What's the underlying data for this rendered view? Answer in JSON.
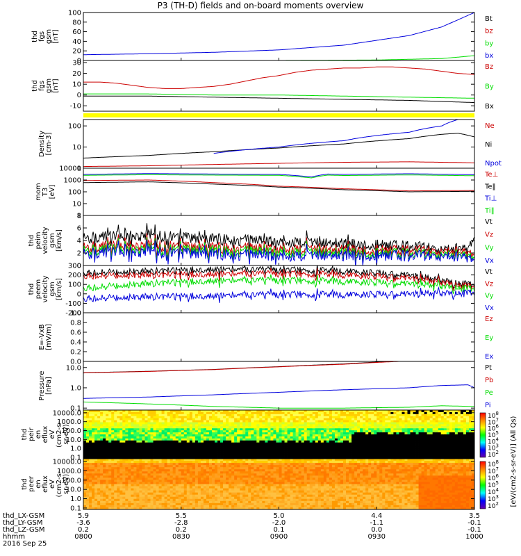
{
  "title": "P3 (TH-D) fields and on-board moments overview",
  "date": "2016 Sep 25",
  "colors": {
    "black": "#000000",
    "red": "#cc0000",
    "green": "#00dd00",
    "blue": "#0000dd",
    "yellow": "#ffff00"
  },
  "chart_data": [
    {
      "type": "line",
      "id": "fgs-gsm-mag",
      "ylabel": [
        "thd",
        "fgs",
        "gsm",
        "[nT]"
      ],
      "ylim": [
        0,
        100
      ],
      "yticks": [
        "100",
        "80",
        "60",
        "40",
        "20",
        "0"
      ],
      "yticks_values": [
        100,
        80,
        60,
        40,
        20,
        0
      ],
      "legend": [
        {
          "name": "Bt",
          "color": "#000000"
        },
        {
          "name": "bz",
          "color": "#cc0000"
        },
        {
          "name": "by",
          "color": "#00dd00"
        },
        {
          "name": "bx",
          "color": "#0000dd"
        }
      ],
      "series": [
        {
          "name": "bx",
          "color": "#0000dd",
          "x": [
            0,
            20,
            40,
            60,
            80,
            100,
            110,
            120
          ],
          "y": [
            12,
            14,
            17,
            22,
            32,
            52,
            70,
            100
          ]
        },
        {
          "name": "by",
          "color": "#00dd00",
          "x": [
            0,
            60,
            90,
            110,
            120
          ],
          "y": [
            0,
            0,
            1,
            4,
            10
          ]
        }
      ]
    },
    {
      "type": "line",
      "id": "fgs-gsm-comp",
      "ylabel": [
        "thd",
        "fgs",
        "gsm",
        "[nT]"
      ],
      "ylim": [
        -15,
        32
      ],
      "yticks": [
        "30",
        "20",
        "10",
        "0",
        "-10"
      ],
      "yticks_values": [
        30,
        20,
        10,
        0,
        -10
      ],
      "legend": [
        {
          "name": "Bz",
          "color": "#cc0000"
        },
        {
          "name": "By",
          "color": "#00dd00"
        },
        {
          "name": "Bx",
          "color": "#000000"
        }
      ],
      "series": [
        {
          "name": "Bz",
          "color": "#cc0000",
          "x": [
            0,
            5,
            10,
            15,
            20,
            25,
            30,
            35,
            40,
            45,
            50,
            55,
            60,
            65,
            70,
            75,
            80,
            85,
            90,
            95,
            100,
            105,
            110,
            115,
            120
          ],
          "y": [
            12,
            12,
            11,
            9,
            7,
            6,
            6,
            7,
            8,
            10,
            13,
            16,
            18,
            21,
            23,
            24,
            25,
            25,
            26,
            26,
            25,
            24,
            22,
            20,
            19
          ]
        },
        {
          "name": "By",
          "color": "#00dd00",
          "x": [
            0,
            20,
            40,
            60,
            80,
            100,
            120
          ],
          "y": [
            1,
            1,
            0,
            0,
            -1,
            -2,
            -3
          ]
        },
        {
          "name": "Bx",
          "color": "#000000",
          "x": [
            0,
            20,
            40,
            60,
            80,
            100,
            120
          ],
          "y": [
            -1,
            -1,
            -2,
            -3,
            -4,
            -5,
            -7
          ]
        }
      ]
    },
    {
      "type": "line",
      "id": "density",
      "scale": "log",
      "ylabel": [
        "Density",
        "[cm-3]"
      ],
      "ylim": [
        1,
        200
      ],
      "yticks": [
        "100",
        "10",
        "1"
      ],
      "yticks_values": [
        100,
        10,
        1
      ],
      "legend": [
        {
          "name": "Ne",
          "color": "#cc0000"
        },
        {
          "name": "Ni",
          "color": "#000000"
        },
        {
          "name": "Npot",
          "color": "#0000dd"
        }
      ],
      "series": [
        {
          "name": "Ni",
          "color": "#000000",
          "x": [
            0,
            20,
            40,
            60,
            80,
            100,
            110,
            115,
            120
          ],
          "y": [
            3,
            4,
            6,
            9,
            14,
            25,
            40,
            45,
            30
          ]
        },
        {
          "name": "Npot",
          "color": "#0000dd",
          "x": [
            40,
            60,
            80,
            100,
            110,
            115
          ],
          "y": [
            5,
            10,
            20,
            50,
            100,
            200
          ]
        },
        {
          "name": "Ne",
          "color": "#cc0000",
          "x": [
            0,
            20,
            40,
            60,
            80,
            100,
            120
          ],
          "y": [
            1.2,
            1.3,
            1.5,
            1.7,
            1.9,
            2.0,
            1.8
          ]
        }
      ]
    },
    {
      "type": "line",
      "id": "temperature",
      "scale": "log",
      "ylabel": [
        "mom",
        "T3",
        "[eV]"
      ],
      "ylim": [
        1,
        10000
      ],
      "yticks": [
        "10000",
        "1000",
        "100",
        "10",
        "1"
      ],
      "yticks_values": [
        10000,
        1000,
        100,
        10,
        1
      ],
      "legend": [
        {
          "name": "Te⊥",
          "color": "#cc0000"
        },
        {
          "name": "Te‖",
          "color": "#000000"
        },
        {
          "name": "Ti⊥",
          "color": "#0000dd"
        },
        {
          "name": "Ti‖",
          "color": "#00dd00"
        }
      ],
      "series": [
        {
          "name": "Ti⊥",
          "color": "#0000dd",
          "x": [
            0,
            20,
            40,
            60,
            70,
            75,
            80,
            100,
            120
          ],
          "y": [
            3000,
            3500,
            3200,
            3000,
            1800,
            3200,
            3000,
            3400,
            2800
          ]
        },
        {
          "name": "Ti‖",
          "color": "#00dd00",
          "x": [
            0,
            20,
            40,
            60,
            70,
            75,
            80,
            100,
            120
          ],
          "y": [
            2500,
            2800,
            2600,
            2500,
            1500,
            2600,
            2400,
            2700,
            2300
          ]
        },
        {
          "name": "Te⊥",
          "color": "#cc0000",
          "x": [
            0,
            20,
            40,
            60,
            80,
            100,
            120
          ],
          "y": [
            900,
            1000,
            600,
            300,
            180,
            120,
            130
          ]
        },
        {
          "name": "Te‖",
          "color": "#000000",
          "x": [
            0,
            20,
            40,
            60,
            80,
            100,
            120
          ],
          "y": [
            600,
            700,
            450,
            250,
            150,
            100,
            110
          ]
        }
      ]
    },
    {
      "type": "line",
      "id": "peim-velocity",
      "ylabel": [
        "thd",
        "peim",
        "velocity",
        "gsm",
        "[km/s]"
      ],
      "ylim": [
        0,
        8
      ],
      "yticks": [
        "8",
        "6",
        "4",
        "2",
        "0"
      ],
      "yticks_values": [
        8,
        6,
        4,
        2,
        0
      ],
      "legend": [
        {
          "name": "Vt",
          "color": "#000000"
        },
        {
          "name": "Vz",
          "color": "#cc0000"
        },
        {
          "name": "Vy",
          "color": "#00dd00"
        },
        {
          "name": "Vx",
          "color": "#0000dd"
        }
      ],
      "series": [
        {
          "name": "Vt",
          "color": "#000000",
          "x": [
            0,
            20,
            40,
            60,
            80,
            100,
            110,
            118,
            120
          ],
          "y": [
            4.5,
            4.8,
            4.2,
            3.8,
            3.5,
            3.0,
            2.6,
            2.8,
            5.0
          ]
        },
        {
          "name": "Vz",
          "color": "#cc0000",
          "x": [
            0,
            20,
            40,
            60,
            80,
            100,
            120
          ],
          "y": [
            3.0,
            3.2,
            2.8,
            2.6,
            2.5,
            2.3,
            2.2
          ]
        },
        {
          "name": "Vy",
          "color": "#00dd00",
          "x": [
            0,
            20,
            40,
            60,
            80,
            100,
            120
          ],
          "y": [
            2.5,
            2.6,
            2.3,
            2.1,
            2.0,
            1.8,
            1.7
          ]
        },
        {
          "name": "Vx",
          "color": "#0000dd",
          "x": [
            0,
            20,
            40,
            60,
            80,
            100,
            120
          ],
          "y": [
            2.0,
            2.2,
            1.8,
            1.5,
            1.6,
            1.5,
            1.4
          ]
        }
      ]
    },
    {
      "type": "line",
      "id": "peem-velocity",
      "ylabel": [
        "thd",
        "peem",
        "velocity",
        "gsm",
        "[km/s]"
      ],
      "ylim": [
        -200,
        300
      ],
      "yticks": [
        "300",
        "200",
        "100",
        "0",
        "-100",
        "-200"
      ],
      "yticks_values": [
        300,
        200,
        100,
        0,
        -100,
        -200
      ],
      "legend": [
        {
          "name": "Vt",
          "color": "#000000"
        },
        {
          "name": "Vz",
          "color": "#cc0000"
        },
        {
          "name": "Vy",
          "color": "#00dd00"
        },
        {
          "name": "Vx",
          "color": "#0000dd"
        }
      ],
      "series": [
        {
          "name": "Vt",
          "color": "#000000",
          "x": [
            0,
            20,
            40,
            60,
            80,
            100,
            110,
            120
          ],
          "y": [
            220,
            240,
            260,
            250,
            240,
            200,
            140,
            90
          ]
        },
        {
          "name": "Vz",
          "color": "#cc0000",
          "x": [
            0,
            20,
            40,
            60,
            80,
            100,
            110,
            120
          ],
          "y": [
            190,
            200,
            210,
            210,
            200,
            170,
            120,
            70
          ]
        },
        {
          "name": "Vy",
          "color": "#00dd00",
          "x": [
            0,
            20,
            40,
            60,
            80,
            100,
            110,
            120
          ],
          "y": [
            60,
            110,
            140,
            140,
            130,
            110,
            80,
            50
          ]
        },
        {
          "name": "Vx",
          "color": "#0000dd",
          "x": [
            0,
            20,
            40,
            60,
            80,
            100,
            120
          ],
          "y": [
            -50,
            -30,
            -20,
            -10,
            -10,
            0,
            10
          ]
        }
      ]
    },
    {
      "type": "line",
      "id": "efield",
      "ylabel": [
        "E=-VxB",
        "[mV/m]"
      ],
      "ylim": [
        0,
        1
      ],
      "yticks": [
        "1.0",
        "0.8",
        "0.6",
        "0.4",
        "0.2",
        "0.0"
      ],
      "yticks_values": [
        1.0,
        0.8,
        0.6,
        0.4,
        0.2,
        0.0
      ],
      "legend": [
        {
          "name": "Ez",
          "color": "#cc0000"
        },
        {
          "name": "Ey",
          "color": "#00dd00"
        },
        {
          "name": "Ex",
          "color": "#0000dd"
        }
      ],
      "series": []
    },
    {
      "type": "line",
      "id": "pressure",
      "scale": "log",
      "ylabel": [
        "Pressure",
        "[nPa]"
      ],
      "ylim": [
        0.08,
        20
      ],
      "yticks": [
        "10.0",
        "1.0",
        "0.1"
      ],
      "yticks_values": [
        10,
        1,
        0.1
      ],
      "legend": [
        {
          "name": "Pt",
          "color": "#000000"
        },
        {
          "name": "Pb",
          "color": "#cc0000"
        },
        {
          "name": "Pe",
          "color": "#00dd00"
        },
        {
          "name": "Pi",
          "color": "#0000dd"
        }
      ],
      "series": [
        {
          "name": "Pt",
          "color": "#000000",
          "x": [
            0,
            20,
            40,
            60,
            80,
            100,
            120
          ],
          "y": [
            5.5,
            6.5,
            8,
            11,
            15,
            22,
            30
          ]
        },
        {
          "name": "Pb",
          "color": "#cc0000",
          "x": [
            0,
            20,
            40,
            60,
            80,
            100,
            120
          ],
          "y": [
            5.4,
            6.4,
            7.9,
            10.8,
            14.5,
            21,
            28
          ]
        },
        {
          "name": "Pi",
          "color": "#0000dd",
          "x": [
            0,
            20,
            40,
            60,
            80,
            100,
            110,
            118,
            120
          ],
          "y": [
            0.3,
            0.35,
            0.45,
            0.6,
            0.8,
            1.0,
            1.3,
            1.4,
            1.0
          ]
        },
        {
          "name": "Pe",
          "color": "#00dd00",
          "x": [
            0,
            20,
            40,
            60,
            80,
            100,
            110,
            120
          ],
          "y": [
            0.2,
            0.16,
            0.12,
            0.1,
            0.1,
            0.11,
            0.13,
            0.12
          ]
        }
      ]
    },
    {
      "type": "heatmap",
      "id": "peir-eflux",
      "ylabel": [
        "thd",
        "peir",
        "en",
        "eflux",
        "eV",
        "(cm2-s-",
        "sr-eV)"
      ],
      "yticks": [
        "10000.0",
        "1000.0",
        "100.0",
        "10.0",
        "1.0",
        "0.1"
      ],
      "yticks_values": [
        10000,
        1000,
        100,
        10,
        1,
        0.1
      ]
    },
    {
      "type": "heatmap",
      "id": "peer-eflux",
      "ylabel": [
        "thd",
        "peer",
        "en",
        "eflux",
        "eV",
        "(cm2-s-",
        "sr-eV)"
      ],
      "yticks": [
        "10000.0",
        "1000.0",
        "100.0",
        "10.0",
        "1.0",
        "0.1"
      ],
      "yticks_values": [
        10000,
        1000,
        100,
        10,
        1,
        0.1
      ]
    }
  ],
  "colorbar": {
    "label": "[eV/(cm2-s-sr-eV)] (All Qs)",
    "ticks1": [
      "10^8",
      "10^7",
      "10^6",
      "10^5",
      "10^4",
      "10^3",
      "10^2"
    ],
    "ticks2": [
      "10^8",
      "10^7",
      "10^6",
      "10^5",
      "10^4",
      "10^3",
      "10^2"
    ]
  },
  "xaxis": {
    "ticks_minutes": [
      0,
      30,
      60,
      90,
      120
    ],
    "rows": [
      {
        "label": "thd_LX-GSM",
        "values": [
          "5.9",
          "5.5",
          "5.0",
          "4.4",
          "3.5"
        ]
      },
      {
        "label": "thd_LY-GSM",
        "values": [
          "-3.6",
          "-2.8",
          "-2.0",
          "-1.1",
          "-0.1"
        ]
      },
      {
        "label": "thd_LZ-GSM",
        "values": [
          "0.2",
          "0.2",
          "0.1",
          "0.0",
          "-0.1"
        ]
      },
      {
        "label": "hhmm",
        "values": [
          "0800",
          "0830",
          "0900",
          "0930",
          "1000"
        ]
      }
    ]
  }
}
